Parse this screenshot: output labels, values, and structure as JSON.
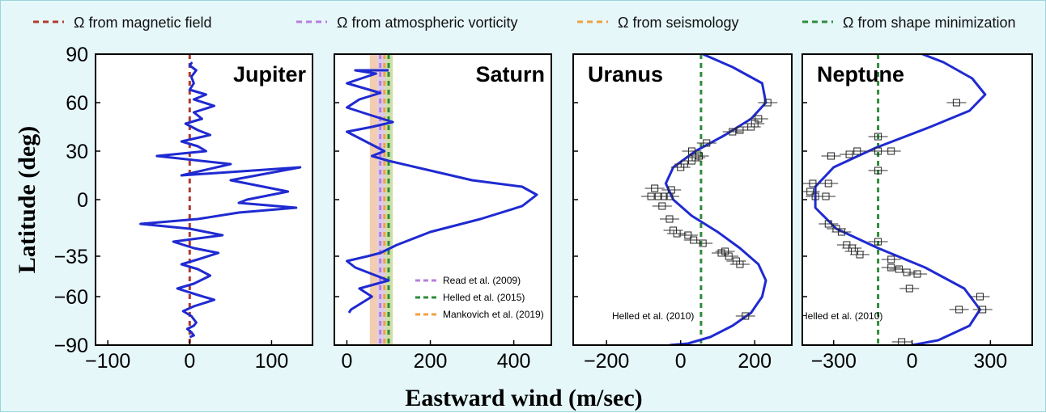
{
  "figure": {
    "xlabel": "Eastward wind (m/sec)",
    "ylabel": "Latitude (deg)",
    "yticks": [
      "90",
      "60",
      "30",
      "0",
      "−35",
      "−60",
      "−90"
    ],
    "ytick_values": [
      90,
      60,
      30,
      0,
      -35,
      -60,
      -90
    ],
    "ylim": [
      -90,
      90
    ]
  },
  "legend": [
    {
      "label": "Ω from magnetic field",
      "color": "#b03a2e"
    },
    {
      "label": "Ω from atmospheric vorticity",
      "color": "#b57edc"
    },
    {
      "label": "Ω from seismology",
      "color": "#f0a040"
    },
    {
      "label": "Ω from shape minimization",
      "color": "#2e8b3a"
    }
  ],
  "colors": {
    "wind_profile": "#1f2ad1",
    "background": "#e6f7fa",
    "panel_bg": "#ffffff"
  },
  "chart_data": [
    {
      "type": "line",
      "title": "Jupiter",
      "xlim": [
        -115,
        150
      ],
      "xticks": [
        -100,
        0,
        100
      ],
      "xtick_labels": [
        "−100",
        "0",
        "100"
      ],
      "ylim": [
        -90,
        90
      ],
      "reference_lines": [
        {
          "source": "magnetic field",
          "x": 0,
          "color": "#b03a2e"
        }
      ],
      "series": [
        {
          "points": [
            [
              0,
              -85
            ],
            [
              5,
              -84
            ],
            [
              2,
              -82
            ],
            [
              -3,
              -80
            ],
            [
              5,
              -78
            ],
            [
              8,
              -76
            ],
            [
              2,
              -72
            ],
            [
              -8,
              -69
            ],
            [
              5,
              -66
            ],
            [
              30,
              -62
            ],
            [
              10,
              -59
            ],
            [
              -15,
              -55
            ],
            [
              5,
              -52
            ],
            [
              25,
              -47
            ],
            [
              10,
              -43
            ],
            [
              -10,
              -40
            ],
            [
              10,
              -37
            ],
            [
              35,
              -33
            ],
            [
              5,
              -30
            ],
            [
              -20,
              -26
            ],
            [
              40,
              -22
            ],
            [
              0,
              -18
            ],
            [
              -60,
              -15
            ],
            [
              10,
              -12
            ],
            [
              60,
              -8
            ],
            [
              130,
              -5
            ],
            [
              60,
              -2
            ],
            [
              70,
              0
            ],
            [
              120,
              5
            ],
            [
              50,
              12
            ],
            [
              135,
              20
            ],
            [
              -10,
              15
            ],
            [
              50,
              22
            ],
            [
              -40,
              27
            ],
            [
              20,
              30
            ],
            [
              10,
              33
            ],
            [
              -10,
              36
            ],
            [
              25,
              40
            ],
            [
              10,
              43
            ],
            [
              -5,
              47
            ],
            [
              15,
              50
            ],
            [
              5,
              54
            ],
            [
              30,
              58
            ],
            [
              5,
              62
            ],
            [
              20,
              65
            ],
            [
              0,
              68
            ],
            [
              5,
              72
            ],
            [
              2,
              76
            ],
            [
              8,
              80
            ],
            [
              0,
              83
            ],
            [
              3,
              85
            ]
          ]
        }
      ],
      "annotations": []
    },
    {
      "type": "line",
      "title": "Saturn",
      "xlim": [
        -30,
        490
      ],
      "xticks": [
        0,
        200,
        400
      ],
      "xtick_labels": [
        "0",
        "200",
        "400"
      ],
      "ylim": [
        -90,
        90
      ],
      "bands": [
        {
          "from": 55,
          "to": 110
        }
      ],
      "reference_lines": [
        {
          "source": "Read et al. (2009)",
          "x": 80,
          "color": "#b57edc"
        },
        {
          "source": "Helled et al. (2015)",
          "x": 100,
          "color": "#2e8b3a"
        },
        {
          "source": "Mankovich et al. (2019)",
          "x": 90,
          "color": "#f0a040"
        }
      ],
      "series": [
        {
          "points": [
            [
              5,
              -70
            ],
            [
              10,
              -68
            ],
            [
              60,
              -60
            ],
            [
              30,
              -55
            ],
            [
              100,
              -50
            ],
            [
              20,
              -42
            ],
            [
              0,
              -38
            ],
            [
              50,
              -35
            ],
            [
              80,
              -33
            ],
            [
              120,
              -28
            ],
            [
              200,
              -20
            ],
            [
              320,
              -12
            ],
            [
              420,
              -4
            ],
            [
              455,
              3
            ],
            [
              420,
              8
            ],
            [
              300,
              12
            ],
            [
              200,
              18
            ],
            [
              100,
              24
            ],
            [
              60,
              27
            ],
            [
              90,
              30
            ],
            [
              30,
              38
            ],
            [
              0,
              42
            ],
            [
              60,
              45
            ],
            [
              110,
              48
            ],
            [
              60,
              52
            ],
            [
              0,
              57
            ],
            [
              30,
              62
            ],
            [
              80,
              66
            ],
            [
              0,
              72
            ],
            [
              70,
              78
            ],
            [
              20,
              80
            ],
            [
              100,
              80
            ]
          ]
        }
      ],
      "annotations": [
        "Read et al. (2009)",
        "Helled et al. (2015)",
        "Mankovich et al. (2019)"
      ]
    },
    {
      "type": "line+scatter",
      "title": "Uranus",
      "xlim": [
        -290,
        300
      ],
      "xticks": [
        -200,
        0,
        200
      ],
      "xtick_labels": [
        "−200",
        "0",
        "200"
      ],
      "ylim": [
        -90,
        90
      ],
      "reference_lines": [
        {
          "source": "Helled et al. (2010)",
          "x": 55,
          "color": "#2e8b3a"
        }
      ],
      "series": [
        {
          "name": "model",
          "points": [
            [
              -30,
              -90
            ],
            [
              20,
              -89
            ],
            [
              80,
              -85
            ],
            [
              140,
              -78
            ],
            [
              190,
              -70
            ],
            [
              220,
              -60
            ],
            [
              230,
              -50
            ],
            [
              210,
              -40
            ],
            [
              160,
              -30
            ],
            [
              100,
              -20
            ],
            [
              30,
              -10
            ],
            [
              -20,
              0
            ],
            [
              -40,
              10
            ],
            [
              -20,
              20
            ],
            [
              40,
              30
            ],
            [
              120,
              40
            ],
            [
              190,
              50
            ],
            [
              230,
              60
            ],
            [
              220,
              72
            ],
            [
              140,
              82
            ],
            [
              60,
              90
            ]
          ]
        }
      ],
      "scatter": [
        [
          -70,
          7
        ],
        [
          -80,
          2
        ],
        [
          -60,
          2
        ],
        [
          -45,
          2
        ],
        [
          -30,
          2
        ],
        [
          -25,
          6
        ],
        [
          -50,
          -4
        ],
        [
          -30,
          -12
        ],
        [
          -20,
          -19
        ],
        [
          -10,
          -21
        ],
        [
          20,
          -22
        ],
        [
          35,
          -25
        ],
        [
          60,
          -27
        ],
        [
          110,
          -33
        ],
        [
          130,
          -35
        ],
        [
          150,
          -38
        ],
        [
          160,
          -40
        ],
        [
          175,
          -72
        ],
        [
          120,
          -32
        ],
        [
          0,
          20
        ],
        [
          10,
          22
        ],
        [
          30,
          24
        ],
        [
          40,
          26
        ],
        [
          50,
          27
        ],
        [
          30,
          30
        ],
        [
          70,
          35
        ],
        [
          140,
          42
        ],
        [
          160,
          43
        ],
        [
          190,
          45
        ],
        [
          200,
          47
        ],
        [
          210,
          50
        ],
        [
          235,
          60
        ]
      ],
      "annotations": [
        "Helled et al. (2010)"
      ]
    },
    {
      "type": "line+scatter",
      "title": "Neptune",
      "xlim": [
        -420,
        460
      ],
      "xticks": [
        -300,
        0,
        300
      ],
      "xtick_labels": [
        "−300",
        "0",
        "300"
      ],
      "ylim": [
        -90,
        90
      ],
      "reference_lines": [
        {
          "source": "Helled et al. (2010)",
          "x": -130,
          "color": "#2e8b3a"
        }
      ],
      "series": [
        {
          "name": "model",
          "points": [
            [
              0,
              -90
            ],
            [
              100,
              -87
            ],
            [
              220,
              -78
            ],
            [
              260,
              -68
            ],
            [
              200,
              -55
            ],
            [
              50,
              -42
            ],
            [
              -130,
              -30
            ],
            [
              -290,
              -18
            ],
            [
              -370,
              -5
            ],
            [
              -370,
              8
            ],
            [
              -300,
              20
            ],
            [
              -140,
              32
            ],
            [
              70,
              45
            ],
            [
              220,
              55
            ],
            [
              280,
              65
            ],
            [
              230,
              75
            ],
            [
              120,
              85
            ],
            [
              40,
              90
            ]
          ]
        }
      ],
      "scatter": [
        [
          -380,
          10
        ],
        [
          -390,
          5
        ],
        [
          -370,
          2
        ],
        [
          -330,
          2
        ],
        [
          -320,
          10
        ],
        [
          -320,
          -15
        ],
        [
          -290,
          -18
        ],
        [
          -270,
          -20
        ],
        [
          -250,
          -28
        ],
        [
          -230,
          -30
        ],
        [
          -220,
          -32
        ],
        [
          -200,
          -34
        ],
        [
          -130,
          -26
        ],
        [
          -80,
          -42
        ],
        [
          -50,
          -43
        ],
        [
          -20,
          -45
        ],
        [
          20,
          -46
        ],
        [
          -80,
          -37
        ],
        [
          -10,
          -55
        ],
        [
          260,
          -60
        ],
        [
          270,
          -68
        ],
        [
          180,
          -68
        ],
        [
          -310,
          27
        ],
        [
          -240,
          28
        ],
        [
          -210,
          30
        ],
        [
          -130,
          30
        ],
        [
          -80,
          30
        ],
        [
          -130,
          39
        ],
        [
          -130,
          18
        ],
        [
          170,
          60
        ],
        [
          -40,
          -88
        ]
      ],
      "annotations": [
        "Helled et al. (2010)"
      ]
    }
  ]
}
